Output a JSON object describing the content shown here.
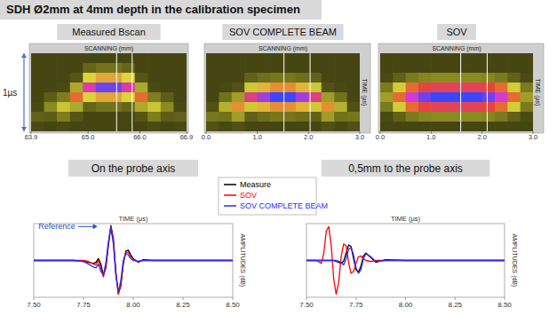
{
  "page": {
    "title": "SDH Ø2mm at 4mm depth in the calibration specimen"
  },
  "chart_data": [
    {
      "type": "heatmap",
      "title": "Measured Bscan",
      "x_label": "SCANNING (mm)",
      "annotation": {
        "text": "1µs"
      },
      "xlim": [
        63.9,
        66.9
      ],
      "xticks": [
        63.9,
        {
          "value": 65,
          "label": "65.0"
        },
        {
          "value": 66,
          "label": "66.0"
        },
        66.9
      ],
      "ylim": [
        0,
        1
      ],
      "cursors": [
        65.55,
        65.85
      ],
      "cells": [
        [
          6,
          6,
          6,
          6,
          6,
          6,
          6,
          6,
          6,
          6,
          6,
          6
        ],
        [
          6,
          6,
          6,
          6,
          16,
          19,
          19,
          16,
          6,
          6,
          6,
          6
        ],
        [
          6,
          6,
          6,
          12,
          44,
          52,
          52,
          44,
          12,
          6,
          6,
          6
        ],
        [
          6,
          6,
          8,
          33,
          80,
          95,
          95,
          80,
          33,
          8,
          6,
          6
        ],
        [
          6,
          14,
          22,
          60,
          44,
          52,
          52,
          44,
          60,
          22,
          14,
          6
        ],
        [
          8,
          25,
          40,
          33,
          16,
          19,
          19,
          16,
          33,
          40,
          25,
          8
        ],
        [
          15,
          14,
          22,
          12,
          6,
          6,
          6,
          6,
          12,
          22,
          14,
          15
        ],
        [
          8,
          6,
          8,
          6,
          6,
          6,
          6,
          6,
          6,
          8,
          6,
          8
        ]
      ]
    },
    {
      "type": "heatmap",
      "title": "SOV COMPLETE BEAM",
      "x_label": "SCANNING (mm)",
      "y_label": "TIME (µs)",
      "xlim": [
        0,
        3
      ],
      "xticks": [
        {
          "value": 0,
          "label": "0.0"
        },
        {
          "value": 1,
          "label": "1.0"
        },
        {
          "value": 2,
          "label": "2.0"
        },
        {
          "value": 3,
          "label": "3.0"
        }
      ],
      "ylim": [
        0,
        1
      ],
      "cursors": [
        1.52,
        2.03
      ],
      "cells": [
        [
          6,
          6,
          6,
          6,
          6,
          6,
          6,
          6,
          6,
          6,
          6,
          6
        ],
        [
          6,
          6,
          6,
          6,
          6,
          6,
          6,
          6,
          6,
          6,
          6,
          6
        ],
        [
          6,
          6,
          6,
          15,
          18,
          20,
          20,
          18,
          15,
          6,
          6,
          6
        ],
        [
          6,
          7,
          11,
          41,
          50,
          55,
          55,
          50,
          41,
          11,
          7,
          6
        ],
        [
          6,
          19,
          30,
          75,
          90,
          100,
          100,
          90,
          75,
          30,
          19,
          6
        ],
        [
          11,
          35,
          55,
          41,
          50,
          55,
          55,
          50,
          41,
          55,
          35,
          11
        ],
        [
          20,
          19,
          30,
          15,
          18,
          20,
          20,
          18,
          15,
          30,
          19,
          20
        ],
        [
          11,
          7,
          11,
          6,
          6,
          6,
          6,
          6,
          6,
          11,
          7,
          11
        ]
      ]
    },
    {
      "type": "heatmap",
      "title": "SOV",
      "x_label": "SCANNING (mm)",
      "y_label": "TIME (µs)",
      "xlim": [
        0,
        3
      ],
      "xticks": [
        {
          "value": 0,
          "label": "0.0"
        },
        {
          "value": 1,
          "label": "1.0"
        },
        {
          "value": 2,
          "label": "2.0"
        },
        {
          "value": 3,
          "label": "3.0"
        }
      ],
      "ylim": [
        0,
        1
      ],
      "cursors": [
        1.58,
        2.1
      ],
      "cells": [
        [
          6,
          6,
          6,
          6,
          6,
          6,
          6,
          6,
          6,
          6,
          6,
          6
        ],
        [
          6,
          6,
          6,
          6,
          6,
          6,
          6,
          6,
          6,
          6,
          6,
          6
        ],
        [
          8,
          15,
          21,
          24,
          25,
          25,
          25,
          25,
          24,
          21,
          15,
          8
        ],
        [
          21,
          42,
          60,
          67,
          70,
          70,
          70,
          70,
          67,
          60,
          42,
          21
        ],
        [
          30,
          60,
          85,
          95,
          100,
          100,
          100,
          100,
          95,
          85,
          60,
          30
        ],
        [
          21,
          42,
          60,
          67,
          70,
          70,
          70,
          70,
          67,
          60,
          42,
          21
        ],
        [
          8,
          15,
          21,
          24,
          25,
          25,
          25,
          25,
          24,
          21,
          15,
          8
        ],
        [
          6,
          6,
          6,
          6,
          6,
          6,
          6,
          6,
          6,
          6,
          6,
          6
        ]
      ]
    },
    {
      "type": "line",
      "title": "On the probe axis",
      "x_label": "TIME (µs)",
      "y_label": "AMPLITUDES (dB)",
      "xlim": [
        7.5,
        8.5
      ],
      "xticks": [
        {
          "value": 7.5,
          "label": "7.50"
        },
        7.75,
        {
          "value": 8,
          "label": "8.00"
        },
        8.25,
        {
          "value": 8.5,
          "label": "8.50"
        }
      ],
      "ylim": [
        -100,
        100
      ],
      "tick_labels": "x",
      "legend": "right",
      "annotation": {
        "text": "Reference",
        "x": 7.82,
        "y": 92
      },
      "x": [
        7.5,
        7.6,
        7.7,
        7.75,
        7.775,
        7.8,
        7.8125,
        7.825,
        7.8375,
        7.85,
        7.8625,
        7.875,
        7.8875,
        7.9,
        7.9125,
        7.925,
        7.9375,
        7.95,
        7.9625,
        7.975,
        7.9875,
        8.0,
        8.025,
        8.05,
        8.1,
        8.2,
        8.3,
        8.5
      ],
      "series": [
        {
          "name": "Measure",
          "color": "#000000",
          "values": [
            0,
            0,
            0,
            -2,
            -5,
            -8,
            -5,
            5,
            -10,
            -40,
            -20,
            40,
            95,
            60,
            -30,
            -90,
            -70,
            -10,
            25,
            28,
            15,
            5,
            -5,
            2,
            0,
            0,
            0,
            0
          ]
        },
        {
          "name": "SOV",
          "color": "#ff0000",
          "values": [
            0,
            0,
            0,
            0,
            -3,
            -10,
            -12,
            0,
            -20,
            -45,
            -15,
            45,
            92,
            55,
            -35,
            -92,
            -65,
            -5,
            20,
            22,
            10,
            3,
            -3,
            0,
            0,
            0,
            0,
            0
          ]
        },
        {
          "name": "SOV COMPLETE BEAM",
          "color": "#2b2bff",
          "values": [
            0,
            0,
            0,
            -3,
            -10,
            -18,
            -20,
            -10,
            -30,
            -40,
            -5,
            50,
            88,
            45,
            -40,
            -85,
            -55,
            0,
            18,
            15,
            5,
            0,
            -2,
            0,
            0,
            0,
            0,
            0
          ]
        }
      ]
    },
    {
      "type": "line",
      "title": "0,5mm to the probe axis",
      "x_label": "TIME (µs)",
      "y_label": "AMPLITUDES (dB)",
      "xlim": [
        7.5,
        8.5
      ],
      "xticks": [
        {
          "value": 7.5,
          "label": "7.50"
        },
        7.75,
        {
          "value": 8,
          "label": "8.00"
        },
        8.25,
        {
          "value": 8.5,
          "label": "8.50"
        }
      ],
      "ylim": [
        -100,
        100
      ],
      "tick_labels": "x",
      "x": [
        7.5,
        7.55,
        7.575,
        7.5875,
        7.6,
        7.6125,
        7.625,
        7.6375,
        7.65,
        7.6625,
        7.675,
        7.6875,
        7.7,
        7.7125,
        7.725,
        7.7375,
        7.75,
        7.7625,
        7.775,
        7.7875,
        7.8,
        7.825,
        7.85,
        7.9,
        8.0,
        8.1,
        8.25,
        8.5
      ],
      "series": [
        {
          "color": "#000000",
          "values": [
            0,
            0,
            0,
            0,
            0,
            0,
            0,
            0,
            -3,
            -5,
            -8,
            -2,
            20,
            42,
            38,
            5,
            -25,
            -32,
            -15,
            12,
            20,
            8,
            -5,
            2,
            0,
            0,
            0,
            0
          ]
        },
        {
          "color": "#ff0000",
          "values": [
            0,
            0,
            -8,
            20,
            80,
            92,
            40,
            -50,
            -92,
            -60,
            10,
            45,
            40,
            -5,
            -35,
            -30,
            -8,
            10,
            12,
            5,
            0,
            -3,
            0,
            0,
            0,
            0,
            0,
            0
          ]
        },
        {
          "color": "#2b2bff",
          "values": [
            0,
            0,
            0,
            0,
            0,
            0,
            0,
            0,
            0,
            -2,
            -5,
            -12,
            5,
            30,
            35,
            15,
            -20,
            -35,
            -25,
            5,
            18,
            10,
            -3,
            0,
            0,
            0,
            0,
            0
          ]
        }
      ]
    }
  ]
}
